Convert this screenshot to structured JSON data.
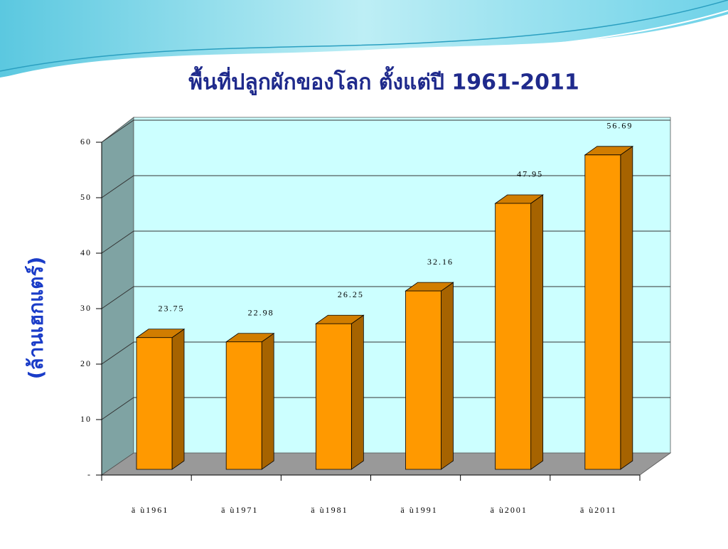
{
  "chart_data": {
    "type": "bar",
    "title": "พื้นที่ปลูกผักของโลก ตั้งแต่ปี 1961-2011",
    "y_label": "(ล้านเฮกแตร์)",
    "categories": [
      "ä ù1961",
      "ä ù1971",
      "ä ù1981",
      "ä ù1991",
      "ä ù2001",
      "ä ù2011"
    ],
    "values": [
      23.75,
      22.98,
      26.25,
      32.16,
      47.95,
      56.69
    ],
    "color": "#ff9900",
    "ylim": [
      0,
      60
    ],
    "yticks": [
      {
        "value": 0,
        "label": "-"
      },
      10,
      20,
      30,
      40,
      50,
      60
    ],
    "grid": true
  }
}
